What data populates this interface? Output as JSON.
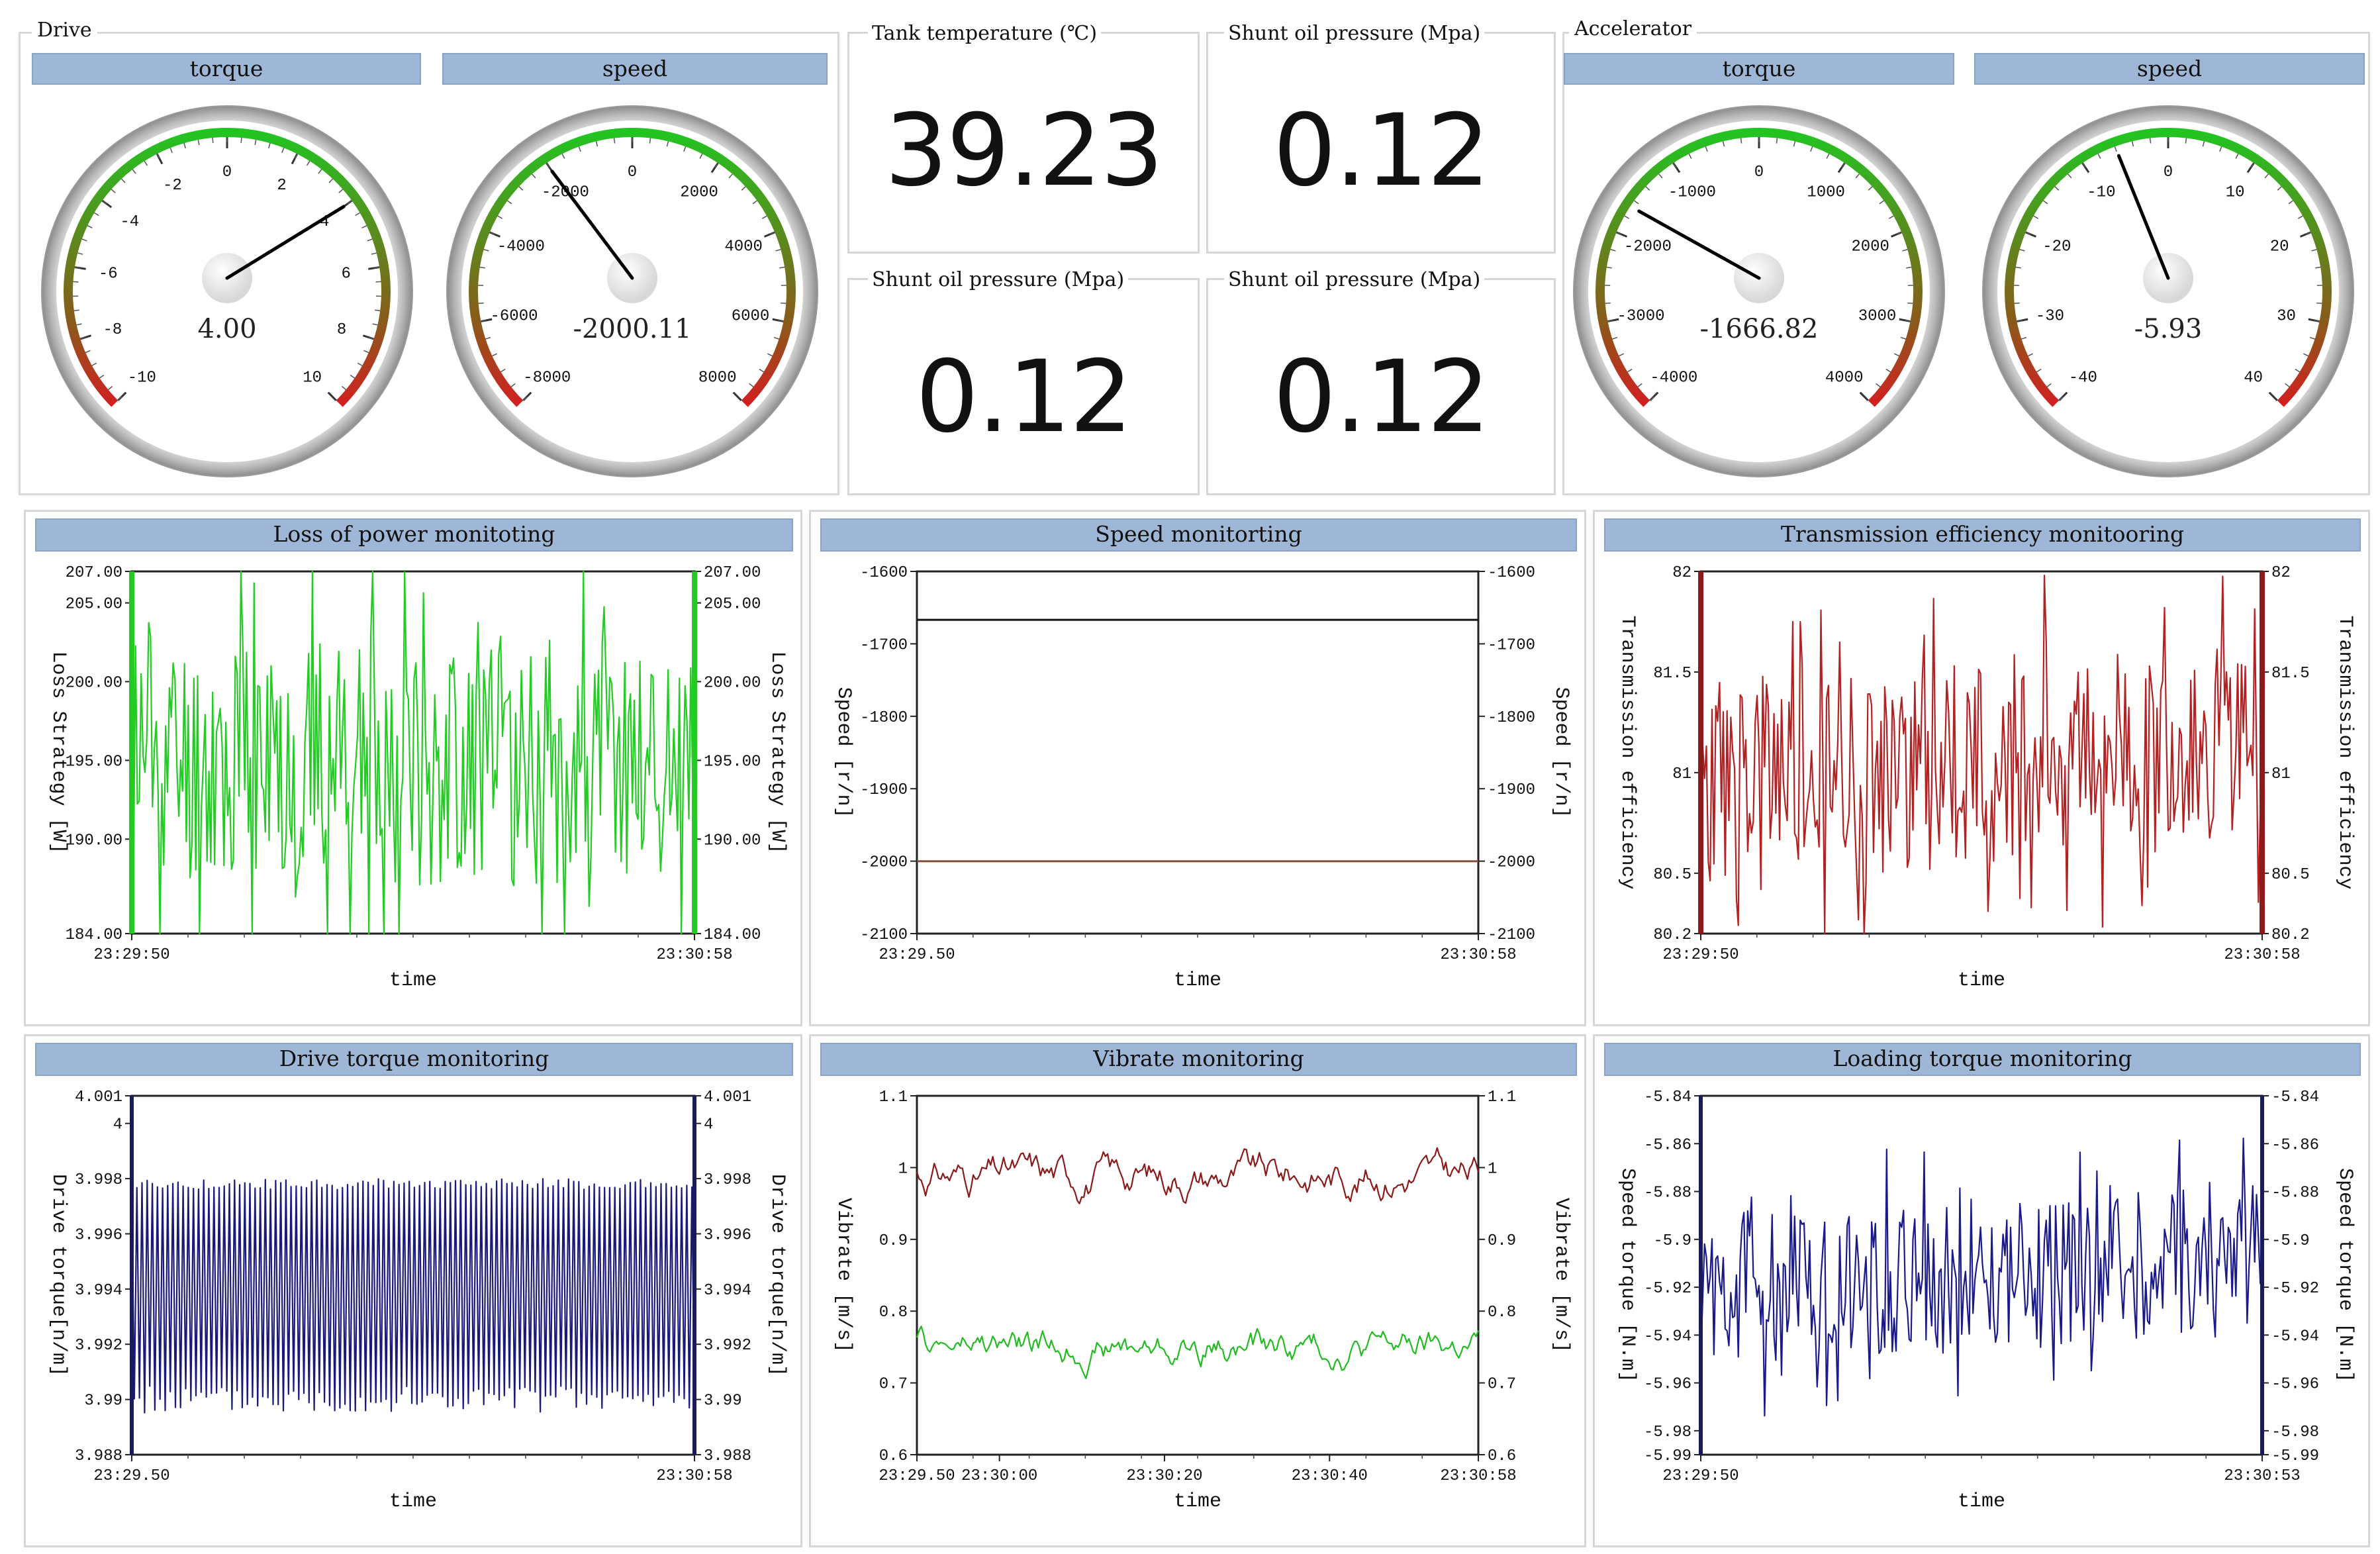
{
  "drive": {
    "title": "Drive",
    "gauges": [
      {
        "label": "torque",
        "value": 4.0,
        "value_text": "4.00",
        "min": -10,
        "max": 10,
        "ticks": [
          "-10",
          "-8",
          "-6",
          "-4",
          "-2",
          "0",
          "2",
          "4",
          "6",
          "8",
          "10"
        ]
      },
      {
        "label": "speed",
        "value": -2000.11,
        "value_text": "-2000.11",
        "min": -8000,
        "max": 8000,
        "ticks": [
          "-8000",
          "-6000",
          "-4000",
          "-2000",
          "0",
          "2000",
          "4000",
          "6000",
          "8000"
        ]
      }
    ]
  },
  "accelerator": {
    "title": "Accelerator",
    "gauges": [
      {
        "label": "torque",
        "value": -1666.82,
        "value_text": "-1666.82",
        "min": -4000,
        "max": 4000,
        "ticks": [
          "-4000",
          "-3000",
          "-2000",
          "-1000",
          "0",
          "1000",
          "2000",
          "3000",
          "4000"
        ]
      },
      {
        "label": "speed",
        "value": -5.93,
        "value_text": "-5.93",
        "min": -40,
        "max": 40,
        "ticks": [
          "-40",
          "-30",
          "-20",
          "-10",
          "0",
          "10",
          "20",
          "30",
          "40"
        ]
      }
    ]
  },
  "displays": [
    {
      "label": "Tank temperature (℃)",
      "value": "39.23"
    },
    {
      "label": "Shunt oil pressure (Mpa)",
      "value": "0.12"
    },
    {
      "label": "Shunt oil pressure (Mpa)",
      "value": "0.12"
    },
    {
      "label": "Shunt oil pressure (Mpa)",
      "value": "0.12"
    }
  ],
  "colors": {
    "header_bg": "#9fb7d6",
    "green": "#22cc22",
    "red": "#b22222",
    "navy": "#1a1a7a",
    "dark_red": "#8b1a1a"
  },
  "chart_data": [
    {
      "type": "line",
      "title": "Loss of power monitoting",
      "xlabel": "time",
      "ylabel": "Loss Strategy [W]",
      "ylabel_right": "Loss Strategy [W]",
      "x_ticks": [
        "23:29:50",
        "23:30:58"
      ],
      "y_ticks": [
        "207.00",
        "205.00",
        "200.00",
        "195.00",
        "190.00",
        "184.00"
      ],
      "ylim": [
        184,
        207
      ],
      "series": [
        {
          "color": "#22cc22",
          "noise": {
            "center": 195,
            "amp": 10,
            "count": 300,
            "seed": 11,
            "spiky": true
          }
        }
      ]
    },
    {
      "type": "line",
      "title": "Speed monitorting",
      "xlabel": "time",
      "ylabel": "Speed [r/n]",
      "ylabel_right": "Speed [r/n]",
      "x_ticks": [
        "23:29.50",
        "23:30:58"
      ],
      "y_ticks": [
        "-1600",
        "-1700",
        "-1800",
        "-1900",
        "-2000",
        "-2100"
      ],
      "ylim": [
        -2100,
        -1600
      ],
      "series": [
        {
          "color": "#111111",
          "values": [
            -1666.82,
            -1666.82
          ]
        },
        {
          "color": "#8b4b3b",
          "values": [
            -2000.11,
            -2000.11
          ]
        }
      ]
    },
    {
      "type": "line",
      "title": "Transmission efficiency monitooring",
      "xlabel": "time",
      "ylabel": "Transmission efficiency",
      "ylabel_right": "Transmission efficiency",
      "x_ticks": [
        "23:29:50",
        "23:30:58"
      ],
      "y_ticks": [
        "82",
        "81.5",
        "81",
        "80.5",
        "80.2"
      ],
      "y_tick_values": [
        82,
        81.5,
        81,
        80.5,
        80.2
      ],
      "ylim": [
        80.2,
        82
      ],
      "series": [
        {
          "color": "#b22222",
          "noise": {
            "center": 81.05,
            "amp": 0.65,
            "count": 300,
            "seed": 23,
            "spiky": true,
            "trend": 0.2
          }
        }
      ]
    },
    {
      "type": "line",
      "title": "Drive torque monitoring",
      "xlabel": "time",
      "ylabel": "Drive torque[n/m]",
      "ylabel_right": "Drive torque[n/m]",
      "x_ticks": [
        "23:29.50",
        "23:30:58"
      ],
      "y_ticks": [
        "4.001",
        "4",
        "3.998",
        "3.996",
        "3.994",
        "3.992",
        "3.99",
        "3.988"
      ],
      "y_tick_values": [
        4.001,
        4.0,
        3.998,
        3.996,
        3.994,
        3.992,
        3.99,
        3.988
      ],
      "ylim": [
        3.988,
        4.001
      ],
      "series": [
        {
          "color": "#1a1a7a",
          "square": {
            "high": 3.998,
            "low": 3.9895,
            "count": 110,
            "seed": 5
          }
        }
      ]
    },
    {
      "type": "line",
      "title": "Vibrate monitoring",
      "xlabel": "time",
      "ylabel": "Vibrate [m/s]",
      "ylabel_right": "Vibrate [m/s]",
      "x_ticks": [
        "23:29.50",
        "23:30:00",
        "23:30:20",
        "23:30:40",
        "23:30:58"
      ],
      "x_tick_pos": [
        0,
        0.147,
        0.441,
        0.735,
        1
      ],
      "y_ticks": [
        "1.1",
        "1",
        "0.9",
        "0.8",
        "0.7",
        "0.6"
      ],
      "ylim": [
        0.6,
        1.1
      ],
      "series": [
        {
          "color": "#8b1a1a",
          "noise": {
            "center": 0.99,
            "amp": 0.04,
            "count": 260,
            "seed": 31,
            "smooth": true
          }
        },
        {
          "color": "#22bb22",
          "noise": {
            "center": 0.75,
            "amp": 0.035,
            "count": 260,
            "seed": 47,
            "smooth": true
          }
        }
      ]
    },
    {
      "type": "line",
      "title": "Loading torque monitoring",
      "xlabel": "time",
      "ylabel": "Speed torque [N.m]",
      "ylabel_right": "Speed torque [N.m]",
      "x_ticks": [
        "23:29:50",
        "23:30:53"
      ],
      "y_ticks": [
        "-5.84",
        "-5.86",
        "-5.88",
        "-5.9",
        "-5.92",
        "-5.94",
        "-5.96",
        "-5.98",
        "-5.99"
      ],
      "y_tick_values": [
        -5.84,
        -5.86,
        -5.88,
        -5.9,
        -5.92,
        -5.94,
        -5.96,
        -5.98,
        -5.99
      ],
      "ylim": [
        -5.99,
        -5.84
      ],
      "series": [
        {
          "color": "#1a1a8a",
          "noise": {
            "center": -5.915,
            "amp": 0.04,
            "count": 300,
            "seed": 59,
            "spiky": true,
            "trend": 0.012
          }
        }
      ]
    }
  ]
}
